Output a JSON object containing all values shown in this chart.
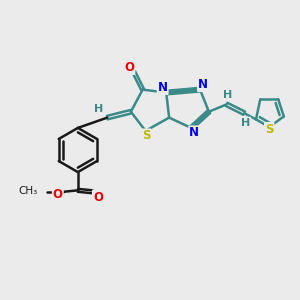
{
  "background_color": "#ebebeb",
  "bond_color": "#3a8a8a",
  "bond_color_dark": "#1a1a1a",
  "bond_width": 1.8,
  "atom_colors": {
    "N": "#0000ee",
    "O": "#ee0000",
    "S": "#bbbb00",
    "H": "#3a8a8a"
  },
  "font_size": 8.5
}
